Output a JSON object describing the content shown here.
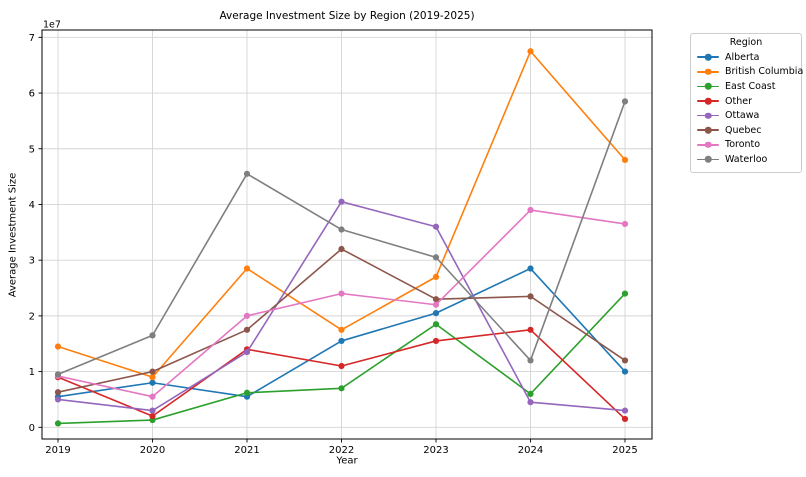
{
  "figure": {
    "title": "Average Investment Size by Region (2019-2025)",
    "xlabel": "Year",
    "ylabel": "Average Investment Size",
    "y_offset_label": "1e7",
    "legend_title": "Region"
  },
  "colors": {
    "grid": "#d4d4d4",
    "axis": "#000000",
    "legend_border": "#cccccc",
    "background": "#ffffff"
  },
  "chart_data": {
    "type": "line",
    "title": "Average Investment Size by Region (2019-2025)",
    "xlabel": "Year",
    "ylabel": "Average Investment Size",
    "x": [
      "2019",
      "2020",
      "2021",
      "2022",
      "2023",
      "2024",
      "2025"
    ],
    "y_ticks": [
      0,
      1,
      2,
      3,
      4,
      5,
      6,
      7
    ],
    "y_scale_offset": "1e7",
    "ylim": [
      -2000000,
      71300000
    ],
    "grid": true,
    "legend_title": "Region",
    "legend_position": "right",
    "marker": "circle",
    "series": [
      {
        "name": "Alberta",
        "color": "#1f77b4",
        "values": [
          5500000,
          8000000,
          5500000,
          15500000,
          20500000,
          28500000,
          10000000
        ]
      },
      {
        "name": "British Columbia",
        "color": "#ff7f0e",
        "values": [
          14500000,
          9000000,
          28500000,
          17500000,
          27000000,
          67500000,
          48000000
        ]
      },
      {
        "name": "East Coast",
        "color": "#2ca02c",
        "values": [
          700000,
          1300000,
          6200000,
          7000000,
          18500000,
          6000000,
          24000000
        ]
      },
      {
        "name": "Other",
        "color": "#d62728",
        "values": [
          9000000,
          2000000,
          14000000,
          11000000,
          15500000,
          17500000,
          1500000
        ]
      },
      {
        "name": "Ottawa",
        "color": "#9467bd",
        "values": [
          5000000,
          3000000,
          13500000,
          40500000,
          36000000,
          4500000,
          3000000
        ]
      },
      {
        "name": "Quebec",
        "color": "#8c564b",
        "values": [
          6300000,
          10000000,
          17500000,
          32000000,
          23000000,
          23500000,
          12000000
        ]
      },
      {
        "name": "Toronto",
        "color": "#e377c2",
        "values": [
          9200000,
          5500000,
          20000000,
          24000000,
          22000000,
          39000000,
          36500000
        ]
      },
      {
        "name": "Waterloo",
        "color": "#7f7f7f",
        "values": [
          9500000,
          16500000,
          45500000,
          35500000,
          30500000,
          12000000,
          58500000
        ]
      }
    ]
  }
}
